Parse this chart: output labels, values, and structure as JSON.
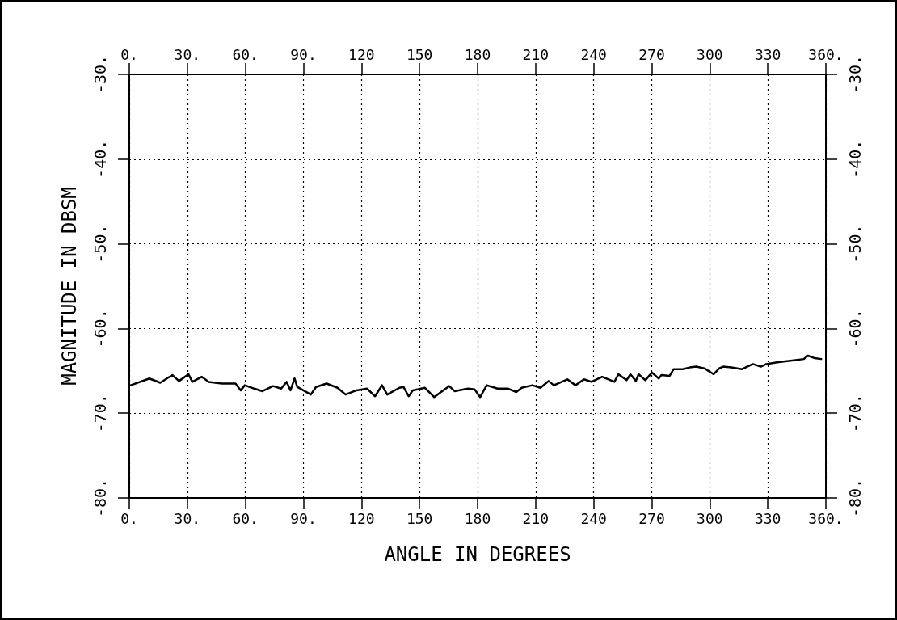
{
  "chart_data": {
    "type": "line",
    "xlabel": "ANGLE IN DEGREES",
    "ylabel": "MAGNITUDE IN DBSM",
    "xlim": [
      0,
      360
    ],
    "ylim": [
      -80,
      -30
    ],
    "xticks": [
      {
        "value": 0,
        "label": "0."
      },
      {
        "value": 30,
        "label": "30."
      },
      {
        "value": 60,
        "label": "60."
      },
      {
        "value": 90,
        "label": "90."
      },
      {
        "value": 120,
        "label": "120"
      },
      {
        "value": 150,
        "label": "150"
      },
      {
        "value": 180,
        "label": "180"
      },
      {
        "value": 210,
        "label": "210"
      },
      {
        "value": 240,
        "label": "240"
      },
      {
        "value": 270,
        "label": "270"
      },
      {
        "value": 300,
        "label": "300"
      },
      {
        "value": 330,
        "label": "330"
      },
      {
        "value": 360,
        "label": "360."
      }
    ],
    "x2lim": [
      0,
      360
    ],
    "x2ticks": [
      {
        "value": 0,
        "label": "0."
      },
      {
        "value": 30,
        "label": "30."
      },
      {
        "value": 60,
        "label": "60."
      },
      {
        "value": 90,
        "label": "90."
      },
      {
        "value": 120,
        "label": "120"
      },
      {
        "value": 150,
        "label": "150"
      },
      {
        "value": 180,
        "label": "180"
      },
      {
        "value": 210,
        "label": "210"
      },
      {
        "value": 240,
        "label": "240"
      },
      {
        "value": 270,
        "label": "270"
      },
      {
        "value": 300,
        "label": "300"
      },
      {
        "value": 330,
        "label": "330"
      },
      {
        "value": 360,
        "label": "360."
      }
    ],
    "yticks": [
      {
        "value": -80,
        "label": "-80."
      },
      {
        "value": -70,
        "label": "-70."
      },
      {
        "value": -60,
        "label": "-60."
      },
      {
        "value": -50,
        "label": "-50."
      },
      {
        "value": -40,
        "label": "-40."
      },
      {
        "value": -30,
        "label": "-30."
      }
    ],
    "y2lim": [
      -80,
      -30
    ],
    "y2ticks": [
      {
        "value": -80,
        "label": "-80."
      },
      {
        "value": -70,
        "label": "-70."
      },
      {
        "value": -60,
        "label": "-60."
      },
      {
        "value": -50,
        "label": "-50."
      },
      {
        "value": -40,
        "label": "-40."
      },
      {
        "value": -30,
        "label": "-30."
      }
    ],
    "grid": true,
    "marker": "none",
    "line_style": "solid",
    "series": [
      {
        "color": "#000000",
        "x": [
          0.7,
          10.4,
          16,
          22.2,
          25.7,
          30.6,
          32.6,
          37.5,
          41,
          47.9,
          54.9,
          57.6,
          59.7,
          64.6,
          68.8,
          74.3,
          78.5,
          81.3,
          83.3,
          85.4,
          86.8,
          93.8,
          96.5,
          102,
          107.6,
          111.8,
          117.4,
          122.9,
          127,
          130.6,
          133.3,
          139.6,
          141.7,
          144.4,
          146.5,
          152.8,
          157.6,
          161.1,
          165.3,
          168.1,
          175,
          178.5,
          181.3,
          184.7,
          190.3,
          195.8,
          200,
          202.8,
          208.3,
          212.5,
          216.7,
          219.4,
          226.4,
          230.6,
          235,
          238.9,
          244.4,
          250.7,
          252.8,
          257,
          259,
          261.8,
          263.2,
          266.7,
          270.1,
          273.6,
          275,
          279.2,
          281.3,
          286.1,
          289.6,
          293,
          297.2,
          302,
          304.9,
          306.9,
          311.1,
          316.7,
          322.2,
          326.4,
          329.2,
          334.7,
          341.7,
          348.6,
          350.7,
          354.2,
          357.6
        ],
        "values": [
          -66.7,
          -65.9,
          -66.4,
          -65.5,
          -66.2,
          -65.4,
          -66.3,
          -65.7,
          -66.3,
          -66.5,
          -66.5,
          -67.3,
          -66.7,
          -67.1,
          -67.4,
          -66.8,
          -67.1,
          -66.3,
          -67.3,
          -65.9,
          -66.9,
          -67.8,
          -66.9,
          -66.5,
          -67.0,
          -67.8,
          -67.3,
          -67.1,
          -68.0,
          -66.7,
          -67.8,
          -67.0,
          -66.9,
          -68.0,
          -67.3,
          -67.0,
          -68.1,
          -67.5,
          -66.8,
          -67.4,
          -67.1,
          -67.2,
          -68.1,
          -66.7,
          -67.1,
          -67.1,
          -67.5,
          -67.0,
          -66.7,
          -67.0,
          -66.2,
          -66.7,
          -66.0,
          -66.7,
          -66.0,
          -66.3,
          -65.7,
          -66.3,
          -65.4,
          -66.1,
          -65.4,
          -66.2,
          -65.4,
          -66.1,
          -65.2,
          -65.9,
          -65.5,
          -65.6,
          -64.8,
          -64.8,
          -64.6,
          -64.5,
          -64.7,
          -65.4,
          -64.7,
          -64.5,
          -64.6,
          -64.8,
          -64.2,
          -64.5,
          -64.2,
          -64.0,
          -63.8,
          -63.6,
          -63.2,
          -63.5,
          -63.6
        ]
      }
    ]
  }
}
